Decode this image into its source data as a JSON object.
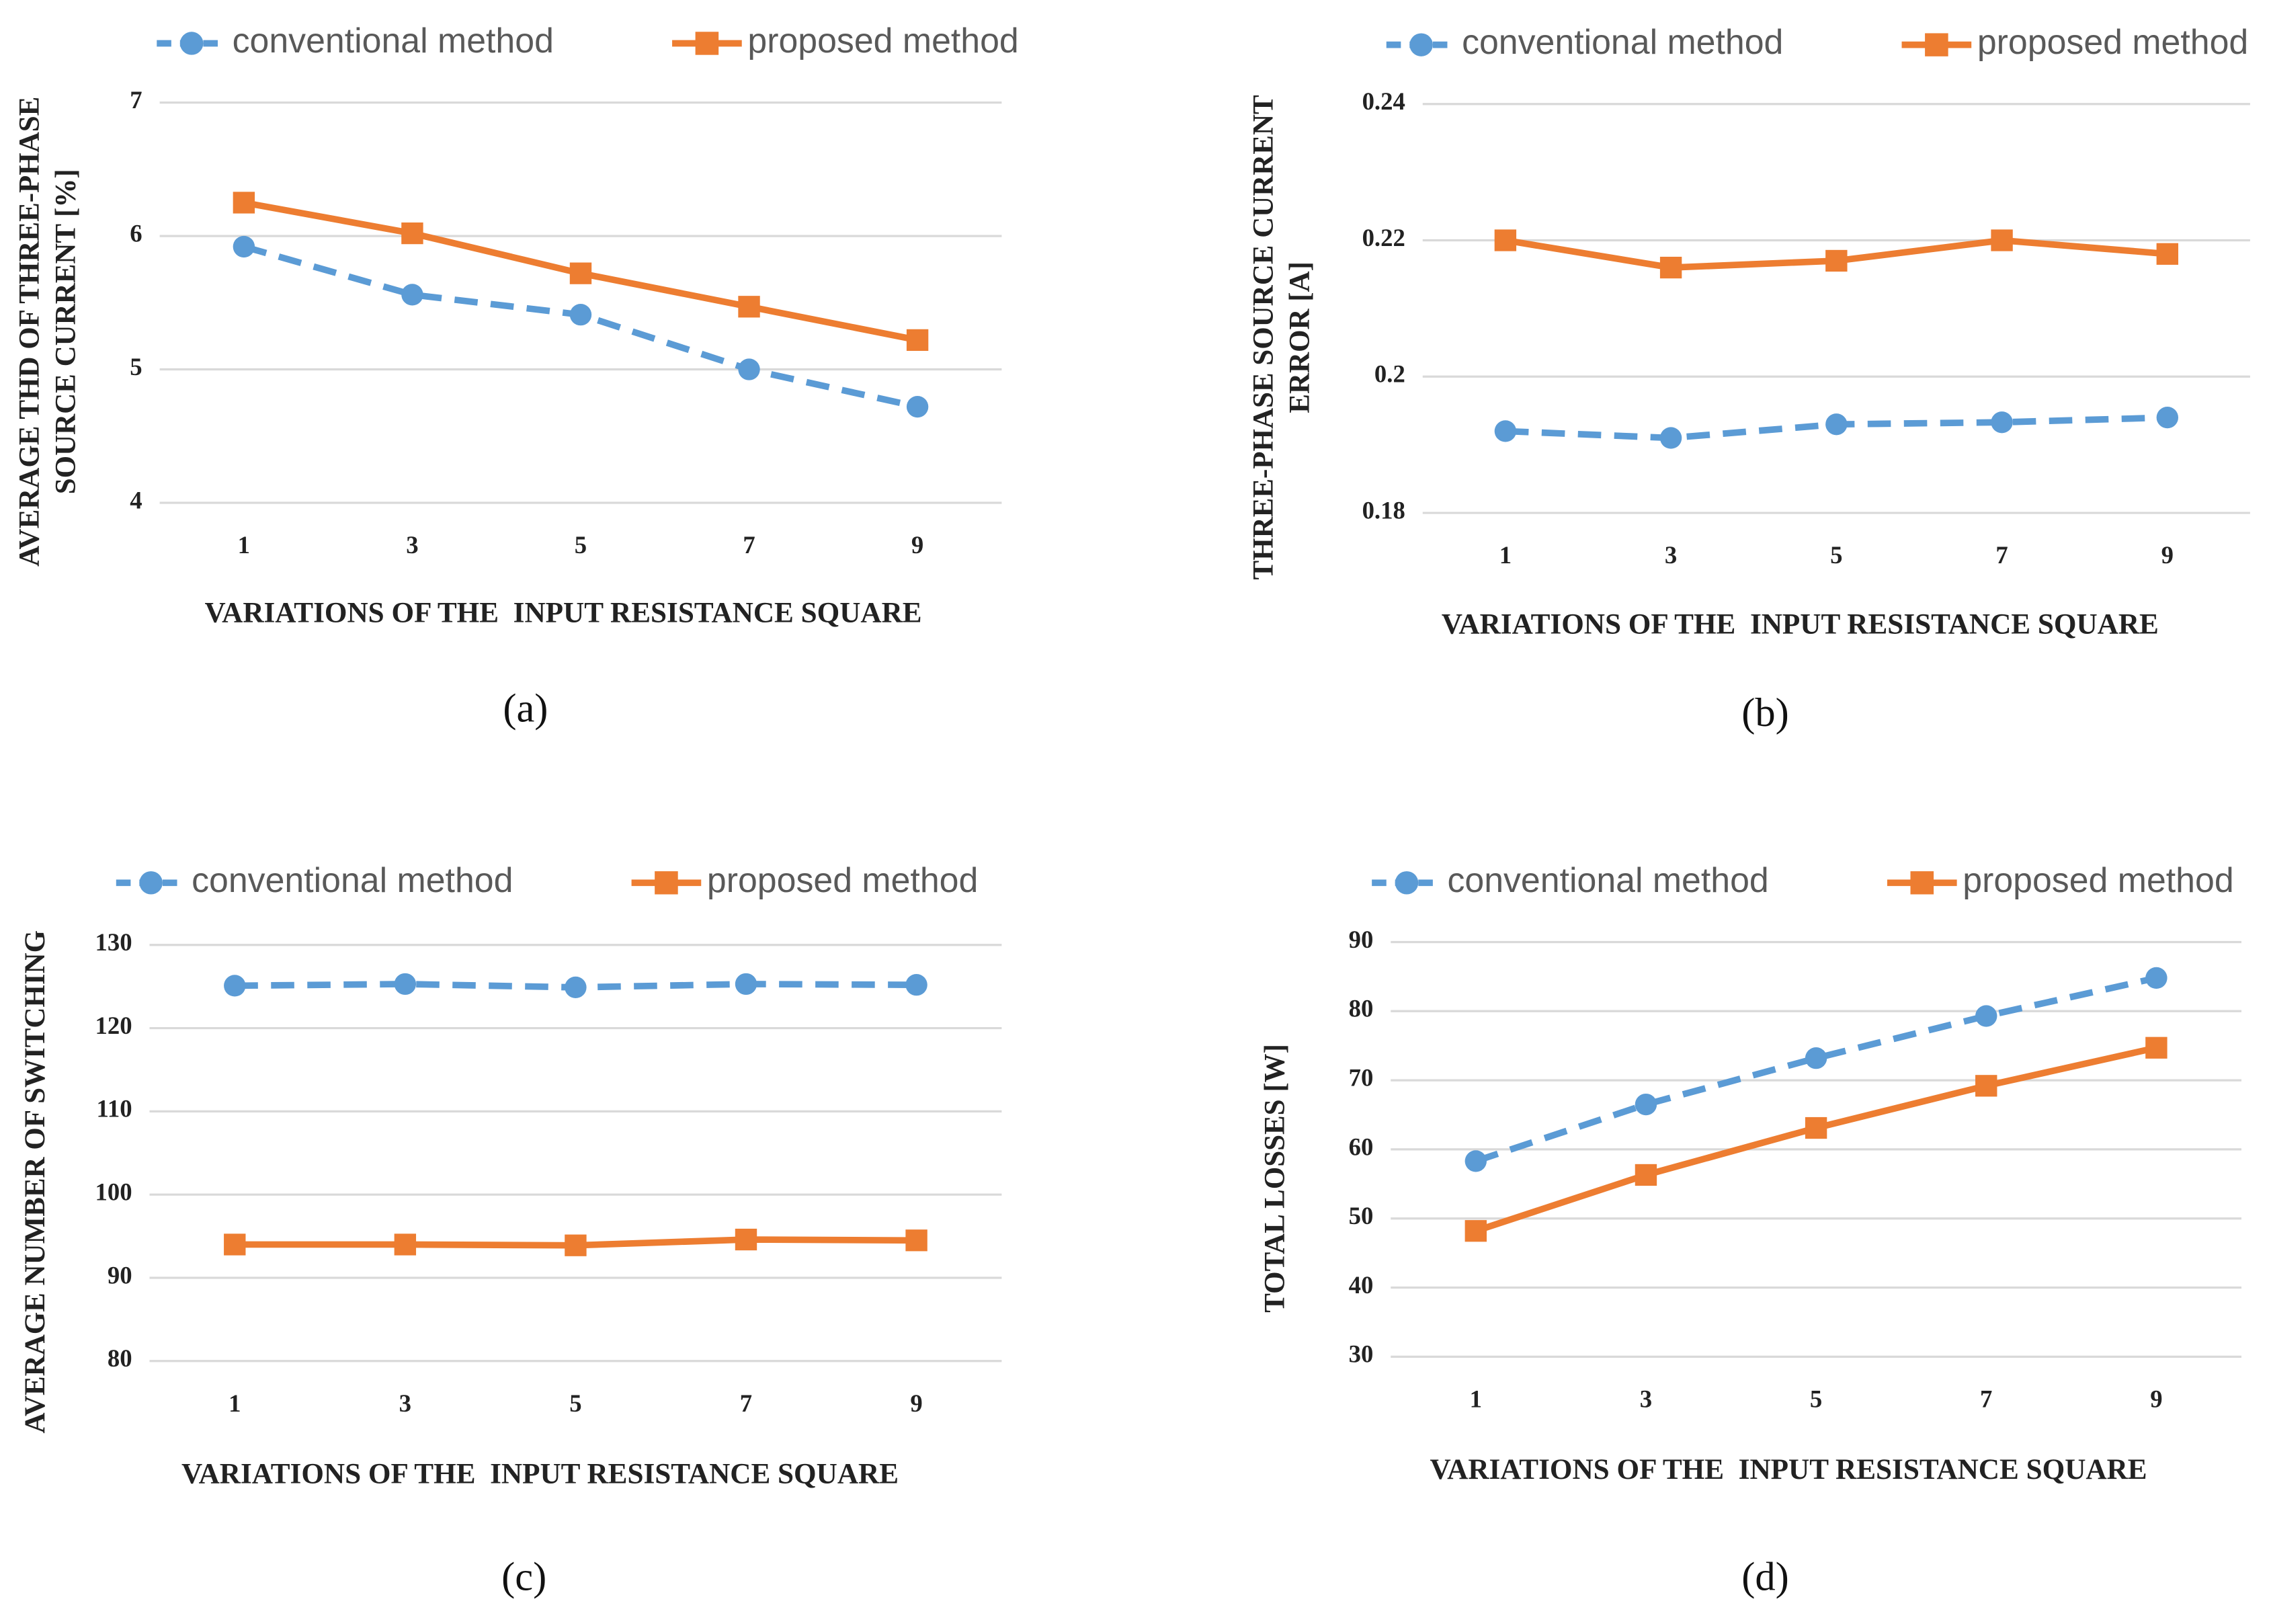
{
  "chart_data": [
    {
      "type": "line",
      "caption": "(a)",
      "ylabel": [
        "AVERAGE THD OF THREE-PHASE",
        "SOURCE CURRENT [%]"
      ],
      "xlabel": "VARIATIONS OF THE  INPUT RESISTANCE SQUARE",
      "categories": [
        "1",
        "3",
        "5",
        "7",
        "9"
      ],
      "ylim": [
        4,
        7
      ],
      "yticks": [
        4,
        5,
        6,
        7
      ],
      "grid": true,
      "series": [
        {
          "name": "conventional method",
          "color": "#5b9bd5",
          "line_style": "dashed",
          "marker": "circle",
          "values": [
            5.92,
            5.56,
            5.41,
            5.0,
            4.72
          ]
        },
        {
          "name": "proposed method",
          "color": "#ed7d31",
          "line_style": "solid",
          "marker": "square",
          "values": [
            6.25,
            6.02,
            5.72,
            5.47,
            5.22
          ]
        }
      ]
    },
    {
      "type": "line",
      "caption": "(b)",
      "ylabel": [
        "THREE-PHASE SOURCE CURRENT",
        "ERROR [A]"
      ],
      "xlabel": "VARIATIONS OF THE  INPUT RESISTANCE SQUARE",
      "categories": [
        "1",
        "3",
        "5",
        "7",
        "9"
      ],
      "ylim": [
        0.18,
        0.24
      ],
      "yticks": [
        0.18,
        0.2,
        0.22,
        0.24
      ],
      "grid": true,
      "series": [
        {
          "name": "conventional method",
          "color": "#5b9bd5",
          "line_style": "dashed",
          "marker": "circle",
          "values": [
            0.192,
            0.191,
            0.193,
            0.1933,
            0.194
          ]
        },
        {
          "name": "proposed method",
          "color": "#ed7d31",
          "line_style": "solid",
          "marker": "square",
          "values": [
            0.22,
            0.216,
            0.217,
            0.22,
            0.218
          ]
        }
      ]
    },
    {
      "type": "line",
      "caption": "(c)",
      "ylabel": [
        "AVERAGE NUMBER OF SWITCHING"
      ],
      "xlabel": "VARIATIONS OF THE  INPUT RESISTANCE SQUARE",
      "categories": [
        "1",
        "3",
        "5",
        "7",
        "9"
      ],
      "ylim": [
        80,
        130
      ],
      "yticks": [
        80,
        90,
        100,
        110,
        120,
        130
      ],
      "grid": true,
      "series": [
        {
          "name": "conventional method",
          "color": "#5b9bd5",
          "line_style": "dashed",
          "marker": "circle",
          "values": [
            125.1,
            125.3,
            124.9,
            125.3,
            125.2
          ]
        },
        {
          "name": "proposed method",
          "color": "#ed7d31",
          "line_style": "solid",
          "marker": "square",
          "values": [
            94.0,
            94.0,
            93.9,
            94.6,
            94.5
          ]
        }
      ]
    },
    {
      "type": "line",
      "caption": "(d)",
      "ylabel": [
        "TOTAL LOSSES [W]"
      ],
      "xlabel": "VARIATIONS OF THE  INPUT RESISTANCE SQUARE",
      "categories": [
        "1",
        "3",
        "5",
        "7",
        "9"
      ],
      "ylim": [
        30,
        90
      ],
      "yticks": [
        30,
        40,
        50,
        60,
        70,
        80,
        90
      ],
      "grid": true,
      "series": [
        {
          "name": "conventional method",
          "color": "#5b9bd5",
          "line_style": "dashed",
          "marker": "circle",
          "values": [
            58.3,
            66.5,
            73.2,
            79.3,
            84.8
          ]
        },
        {
          "name": "proposed method",
          "color": "#ed7d31",
          "line_style": "solid",
          "marker": "square",
          "values": [
            48.2,
            56.3,
            63.1,
            69.2,
            74.7
          ]
        }
      ]
    }
  ]
}
